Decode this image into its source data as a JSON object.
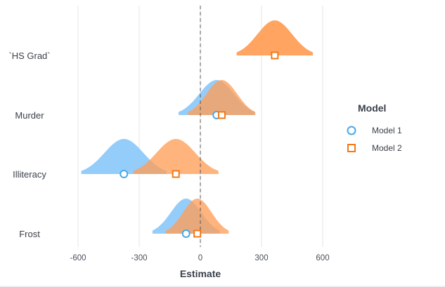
{
  "chart_data": {
    "type": "coefficient-density",
    "title": "",
    "xlabel": "Estimate",
    "ylabel": "",
    "xlim": [
      -690,
      700
    ],
    "xticks": [
      -600,
      -300,
      0,
      300,
      600
    ],
    "xtick_labels": [
      "-600",
      "-300",
      "0",
      "300",
      "600"
    ],
    "zero_line": "dashed",
    "grid": "vertical",
    "categories": [
      "`HS Grad`",
      "Murder",
      "Illiteracy",
      "Frost"
    ],
    "legend": {
      "title": "Model",
      "position": "right",
      "items": [
        {
          "label": "Model 1",
          "marker": "circle",
          "color": "#4aa8ea",
          "fill": "#8ecafa"
        },
        {
          "label": "Model 2",
          "marker": "square",
          "color": "#f07a1a",
          "fill": "#ff9f58"
        }
      ]
    },
    "series": [
      {
        "name": "Model 1",
        "estimates": [
          null,
          80,
          -375,
          -70
        ],
        "sd": [
          null,
          85,
          95,
          75
        ]
      },
      {
        "name": "Model 2",
        "estimates": [
          365,
          105,
          -120,
          -15
        ],
        "sd": [
          null,
          75,
          95,
          70
        ]
      }
    ]
  },
  "colors": {
    "model1_fill": "#8ecafa",
    "model1_line": "#4aa8ea",
    "model2_fill": "#ff9f58",
    "model2_line": "#f07a1a",
    "grid": "#e6e6e6",
    "zero": "#555555"
  }
}
